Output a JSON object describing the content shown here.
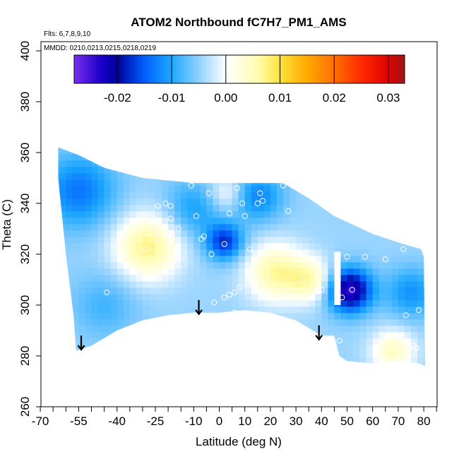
{
  "chart_data": {
    "type": "heatmap",
    "title": "ATOM2 Northbound fC7H7_PM1_AMS",
    "annotations": {
      "flights": "Flts: 6,7,8,9,10",
      "dates": "MMDD: 0210,0213,0215,0218,0219"
    },
    "xlabel": "Latitude (deg N)",
    "ylabel": "Theta (C)",
    "xlim": [
      -70,
      85
    ],
    "ylim": [
      260,
      410
    ],
    "x_ticks": [
      -70,
      -55,
      -40,
      -25,
      -10,
      0,
      10,
      20,
      30,
      40,
      50,
      60,
      70,
      80
    ],
    "x_tick_labels": [
      "-70",
      "-55",
      "-40",
      "-25",
      "-10",
      "0",
      "10",
      "20",
      "30",
      "40",
      "50",
      "60",
      "70",
      "80"
    ],
    "x_minor_ticks": [
      -65,
      -60,
      -50,
      -45,
      -35,
      -30,
      -20,
      -15,
      -5,
      5,
      15,
      25,
      35,
      45,
      55,
      65,
      75,
      85
    ],
    "y_ticks": [
      260,
      280,
      300,
      320,
      340,
      360,
      380,
      400
    ],
    "y_tick_labels": [
      "260",
      "280",
      "300",
      "320",
      "340",
      "360",
      "380",
      "400"
    ],
    "colorbar": {
      "range": [
        -0.028,
        0.033
      ],
      "ticks": [
        -0.02,
        -0.01,
        0.0,
        0.01,
        0.02,
        0.03
      ],
      "tick_labels": [
        "-0.02",
        "-0.01",
        "0.00",
        "0.01",
        "0.02",
        "0.03"
      ],
      "stops": [
        {
          "v": -0.028,
          "c": "#7b2ff0"
        },
        {
          "v": -0.023,
          "c": "#1a00c8"
        },
        {
          "v": -0.02,
          "c": "#0000a0"
        },
        {
          "v": -0.015,
          "c": "#0060ff"
        },
        {
          "v": -0.01,
          "c": "#1ea8ff"
        },
        {
          "v": -0.005,
          "c": "#8fd0ff"
        },
        {
          "v": 0.0,
          "c": "#ffffff"
        },
        {
          "v": 0.006,
          "c": "#fffcb0"
        },
        {
          "v": 0.01,
          "c": "#ffe23a"
        },
        {
          "v": 0.015,
          "c": "#ffaa00"
        },
        {
          "v": 0.02,
          "c": "#ff6e00"
        },
        {
          "v": 0.025,
          "c": "#ff2a00"
        },
        {
          "v": 0.03,
          "c": "#e00000"
        },
        {
          "v": 0.033,
          "c": "#a01818"
        }
      ]
    },
    "field_centers": [
      {
        "lat": -28,
        "theta": 323,
        "value": 0.012,
        "sigma": 9
      },
      {
        "lat": 22,
        "theta": 313,
        "value": 0.011,
        "sigma": 8
      },
      {
        "lat": 36,
        "theta": 310,
        "value": 0.009,
        "sigma": 6
      },
      {
        "lat": 3,
        "theta": 344,
        "value": 0.006,
        "sigma": 5
      },
      {
        "lat": 68,
        "theta": 282,
        "value": 0.009,
        "sigma": 6
      },
      {
        "lat": 51,
        "theta": 306,
        "value": -0.02,
        "sigma": 6
      },
      {
        "lat": 2,
        "theta": 325,
        "value": -0.013,
        "sigma": 5
      },
      {
        "lat": -55,
        "theta": 345,
        "value": -0.009,
        "sigma": 10
      },
      {
        "lat": 15,
        "theta": 343,
        "value": -0.008,
        "sigma": 7
      },
      {
        "lat": 75,
        "theta": 305,
        "value": -0.007,
        "sigma": 7
      },
      {
        "lat": -10,
        "theta": 338,
        "value": -0.006,
        "sigma": 8
      },
      {
        "lat": -45,
        "theta": 300,
        "value": -0.004,
        "sigma": 9
      }
    ],
    "domain_outline": [
      [
        -63,
        362
      ],
      [
        -55,
        359
      ],
      [
        -45,
        354
      ],
      [
        -30,
        350
      ],
      [
        -10,
        348
      ],
      [
        10,
        348
      ],
      [
        25,
        348
      ],
      [
        35,
        342
      ],
      [
        45,
        335
      ],
      [
        60,
        328
      ],
      [
        72,
        324
      ],
      [
        79,
        322
      ],
      [
        80,
        319
      ],
      [
        80.5,
        276
      ],
      [
        78,
        277
      ],
      [
        70,
        278
      ],
      [
        60,
        277
      ],
      [
        50,
        278
      ],
      [
        47,
        280
      ],
      [
        45,
        288
      ],
      [
        40,
        288
      ],
      [
        30,
        294
      ],
      [
        20,
        297
      ],
      [
        10,
        298
      ],
      [
        0,
        297
      ],
      [
        -10,
        297
      ],
      [
        -20,
        296
      ],
      [
        -30,
        294
      ],
      [
        -40,
        290
      ],
      [
        -50,
        284
      ],
      [
        -56,
        282
      ],
      [
        -57,
        296
      ],
      [
        -60,
        320
      ],
      [
        -63,
        350
      ]
    ],
    "gap_column": {
      "lat_from": 45,
      "lat_to": 47.5,
      "theta_from": 300,
      "theta_to": 321
    },
    "sample_points": [
      [
        -24,
        339
      ],
      [
        -21,
        340
      ],
      [
        -19,
        334
      ],
      [
        -16,
        330
      ],
      [
        -11,
        347
      ],
      [
        -9,
        335
      ],
      [
        -6,
        327
      ],
      [
        -7,
        326
      ],
      [
        -3,
        320
      ],
      [
        -2,
        301
      ],
      [
        2,
        303
      ],
      [
        4,
        304
      ],
      [
        6,
        297
      ],
      [
        2,
        324
      ],
      [
        4,
        336
      ],
      [
        7,
        346
      ],
      [
        9,
        340
      ],
      [
        10,
        335
      ],
      [
        12,
        322
      ],
      [
        15,
        340
      ],
      [
        16,
        344
      ],
      [
        17,
        341
      ],
      [
        25,
        347
      ],
      [
        13,
        309
      ],
      [
        6,
        305
      ],
      [
        8,
        307
      ],
      [
        -44,
        305
      ],
      [
        -29,
        322
      ],
      [
        -4,
        344
      ],
      [
        27,
        337
      ],
      [
        33,
        310
      ],
      [
        40,
        306
      ],
      [
        48,
        303
      ],
      [
        50,
        319
      ],
      [
        52,
        306
      ],
      [
        57,
        319
      ],
      [
        65,
        318
      ],
      [
        72,
        322
      ],
      [
        73,
        296
      ],
      [
        76,
        284
      ],
      [
        77,
        283
      ],
      [
        78,
        298
      ],
      [
        80,
        322
      ],
      [
        70,
        278
      ],
      [
        47,
        286
      ],
      [
        -19,
        339
      ]
    ],
    "arrows": [
      {
        "lat": -54,
        "theta": 288
      },
      {
        "lat": -8,
        "theta": 302
      },
      {
        "lat": 39,
        "theta": 292
      }
    ]
  }
}
